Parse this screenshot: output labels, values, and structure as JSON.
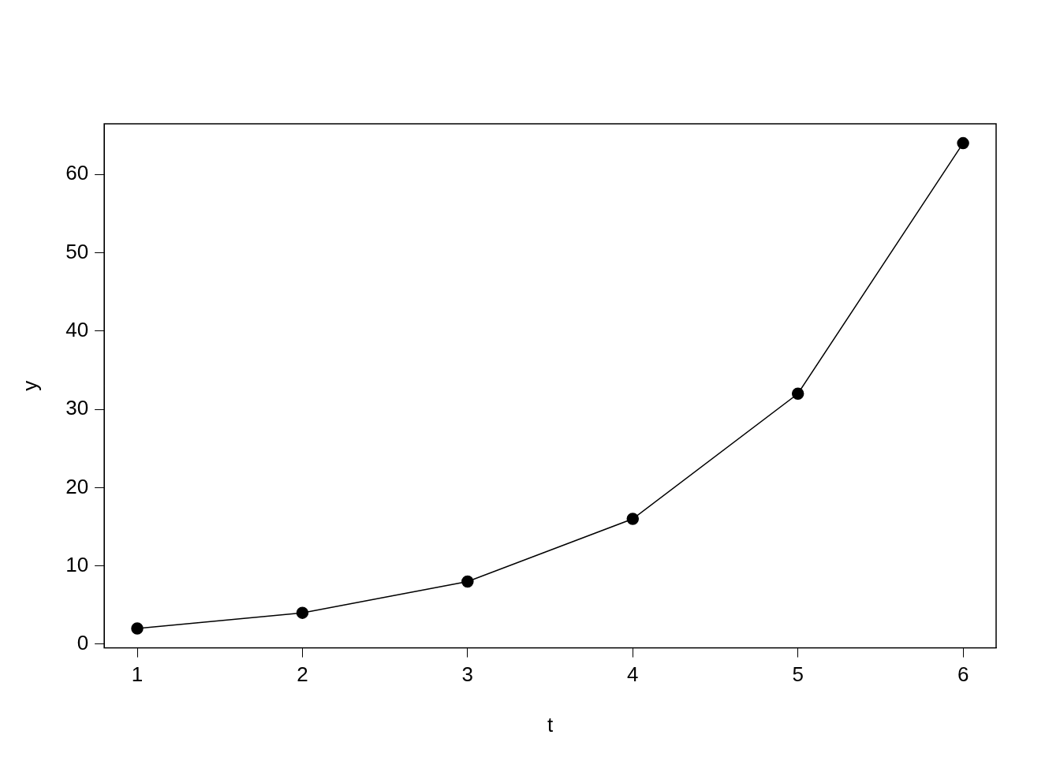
{
  "chart_data": {
    "type": "line",
    "x": [
      1,
      2,
      3,
      4,
      5,
      6
    ],
    "values": [
      2,
      4,
      8,
      16,
      32,
      64
    ],
    "xlabel": "t",
    "ylabel": "y",
    "xlim": [
      0.8,
      6.2
    ],
    "ylim": [
      -0.48,
      66.48
    ],
    "xticks": [
      1,
      2,
      3,
      4,
      5,
      6
    ],
    "yticks": [
      0,
      10,
      20,
      30,
      40,
      50,
      60
    ],
    "color": "#000000",
    "marker": "circle",
    "line_style": "solid",
    "grid": false
  }
}
